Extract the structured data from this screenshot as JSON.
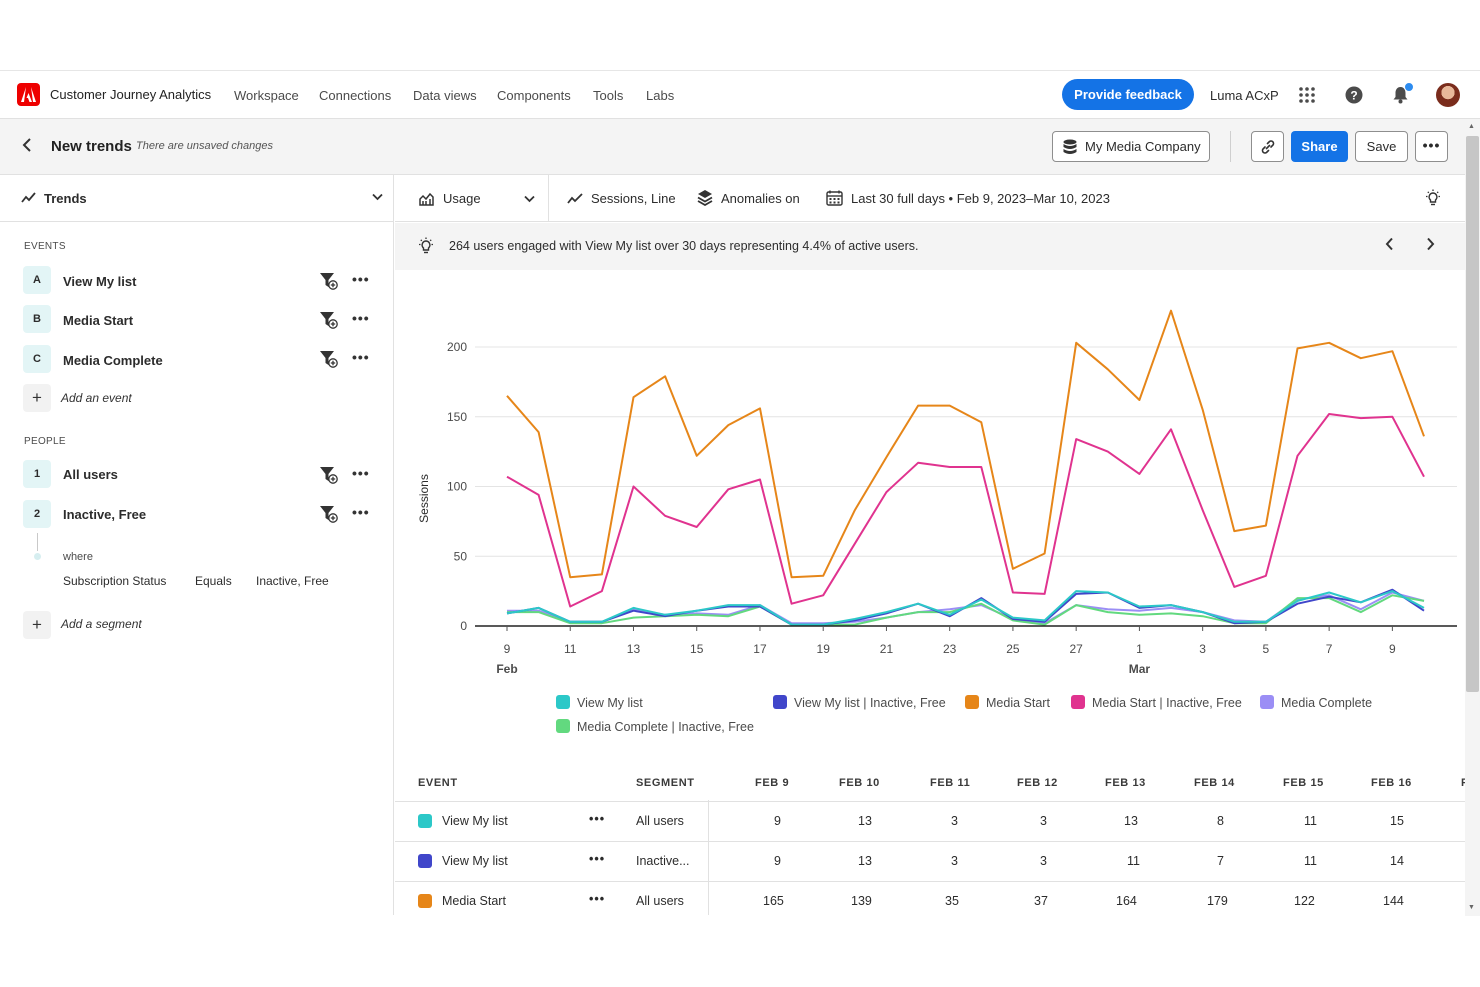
{
  "app": {
    "name": "Customer Journey Analytics",
    "nav": [
      "Workspace",
      "Connections",
      "Data views",
      "Components",
      "Tools",
      "Labs"
    ],
    "feedback_label": "Provide feedback",
    "org": "Luma ACxP"
  },
  "project": {
    "title": "New trends",
    "unsaved": "There are unsaved changes",
    "company": "My Media Company",
    "share_label": "Share",
    "save_label": "Save"
  },
  "left": {
    "header": "Trends",
    "events_label": "EVENTS",
    "events": [
      {
        "chip": "A",
        "label": "View My list"
      },
      {
        "chip": "B",
        "label": "Media Start"
      },
      {
        "chip": "C",
        "label": "Media Complete"
      }
    ],
    "add_event": "Add an event",
    "people_label": "PEOPLE",
    "people": [
      {
        "chip": "1",
        "label": "All users"
      },
      {
        "chip": "2",
        "label": "Inactive, Free"
      }
    ],
    "where": "where",
    "condition": {
      "field": "Subscription Status",
      "op": "Equals",
      "value": "Inactive, Free"
    },
    "add_segment": "Add a segment"
  },
  "toolbar": {
    "usage": "Usage",
    "metric": "Sessions, Line",
    "anomalies": "Anomalies on",
    "daterange": "Last 30 full days • Feb 9, 2023–Mar 10, 2023"
  },
  "insight": {
    "text": "264 users engaged with View My list over 30 days representing 4.4% of active users."
  },
  "chart_data": {
    "type": "line",
    "ylabel": "Sessions",
    "ylim": [
      0,
      230
    ],
    "yticks": [
      0,
      50,
      100,
      150,
      200
    ],
    "x": [
      "Feb 9",
      "Feb 10",
      "Feb 11",
      "Feb 12",
      "Feb 13",
      "Feb 14",
      "Feb 15",
      "Feb 16",
      "Feb 17",
      "Feb 18",
      "Feb 19",
      "Feb 20",
      "Feb 21",
      "Feb 22",
      "Feb 23",
      "Feb 24",
      "Feb 25",
      "Feb 26",
      "Feb 27",
      "Feb 28",
      "Mar 1",
      "Mar 2",
      "Mar 3",
      "Mar 4",
      "Mar 5",
      "Mar 6",
      "Mar 7",
      "Mar 8",
      "Mar 9",
      "Mar 10"
    ],
    "xtick_labels": [
      {
        "i": 0,
        "label": "9",
        "sub": "Feb"
      },
      {
        "i": 2,
        "label": "11"
      },
      {
        "i": 4,
        "label": "13"
      },
      {
        "i": 6,
        "label": "15"
      },
      {
        "i": 8,
        "label": "17"
      },
      {
        "i": 10,
        "label": "19"
      },
      {
        "i": 12,
        "label": "21"
      },
      {
        "i": 14,
        "label": "23"
      },
      {
        "i": 16,
        "label": "25"
      },
      {
        "i": 18,
        "label": "27"
      },
      {
        "i": 20,
        "label": "1",
        "sub": "Mar"
      },
      {
        "i": 22,
        "label": "3"
      },
      {
        "i": 24,
        "label": "5"
      },
      {
        "i": 26,
        "label": "7"
      },
      {
        "i": 28,
        "label": "9"
      }
    ],
    "series": [
      {
        "name": "Media Start",
        "color": "#e68619",
        "values": [
          165,
          139,
          35,
          37,
          164,
          179,
          122,
          144,
          156,
          35,
          36,
          83,
          121,
          158,
          158,
          146,
          41,
          52,
          203,
          184,
          162,
          226,
          155,
          68,
          72,
          199,
          203,
          192,
          197,
          136
        ]
      },
      {
        "name": "Media Start | Inactive, Free",
        "color": "#e0338f",
        "values": [
          107,
          94,
          14,
          25,
          100,
          79,
          71,
          98,
          105,
          16,
          22,
          59,
          96,
          117,
          114,
          114,
          24,
          23,
          134,
          125,
          109,
          141,
          83,
          28,
          36,
          122,
          152,
          149,
          150,
          107
        ]
      },
      {
        "name": "Media Complete",
        "color": "#9b8ef5",
        "values": [
          11,
          11,
          3,
          3,
          12,
          8,
          9,
          8,
          15,
          2,
          2,
          3,
          6,
          10,
          12,
          15,
          5,
          2,
          15,
          12,
          11,
          13,
          10,
          4,
          3,
          19,
          22,
          12,
          24,
          18
        ]
      },
      {
        "name": "Media Complete | Inactive, Free",
        "color": "#62d97f",
        "values": [
          10,
          10,
          2,
          2,
          6,
          7,
          8,
          7,
          14,
          1,
          1,
          1,
          6,
          10,
          10,
          16,
          4,
          1,
          15,
          10,
          8,
          9,
          7,
          2,
          2,
          20,
          20,
          10,
          22,
          18
        ]
      },
      {
        "name": "View My list | Inactive, Free",
        "color": "#4046ca",
        "values": [
          9,
          13,
          3,
          3,
          11,
          7,
          11,
          14,
          14,
          1,
          1,
          4,
          9,
          16,
          7,
          20,
          5,
          3,
          23,
          24,
          13,
          15,
          10,
          2,
          3,
          16,
          21,
          17,
          26,
          11
        ]
      },
      {
        "name": "View My list",
        "color": "#2cc8c8",
        "values": [
          9,
          13,
          3,
          3,
          13,
          8,
          11,
          15,
          15,
          1,
          1,
          5,
          10,
          16,
          8,
          19,
          6,
          4,
          25,
          24,
          14,
          15,
          10,
          3,
          3,
          18,
          24,
          17,
          25,
          13
        ]
      }
    ]
  },
  "legend": [
    {
      "label": "View My list",
      "color": "#2cc8c8"
    },
    {
      "label": "View My list | Inactive, Free",
      "color": "#4046ca"
    },
    {
      "label": "Media Start",
      "color": "#e68619"
    },
    {
      "label": "Media Start | Inactive, Free",
      "color": "#e0338f"
    },
    {
      "label": "Media Complete",
      "color": "#9b8ef5"
    },
    {
      "label": "Media Complete | Inactive, Free",
      "color": "#62d97f"
    }
  ],
  "table": {
    "headers": {
      "event": "EVENT",
      "segment": "SEGMENT",
      "days": [
        "FEB 9",
        "FEB 10",
        "FEB 11",
        "FEB 12",
        "FEB 13",
        "FEB 14",
        "FEB 15",
        "FEB 16"
      ],
      "cut": "F"
    },
    "rows": [
      {
        "event": "View My list",
        "color": "#2cc8c8",
        "segment": "All users",
        "values": [
          "9",
          "13",
          "3",
          "3",
          "13",
          "8",
          "11",
          "15"
        ]
      },
      {
        "event": "View My list",
        "color": "#4046ca",
        "segment": "Inactive...",
        "values": [
          "9",
          "13",
          "3",
          "3",
          "11",
          "7",
          "11",
          "14"
        ]
      },
      {
        "event": "Media Start",
        "color": "#e68619",
        "segment": "All users",
        "values": [
          "165",
          "139",
          "35",
          "37",
          "164",
          "179",
          "122",
          "144"
        ]
      }
    ]
  }
}
